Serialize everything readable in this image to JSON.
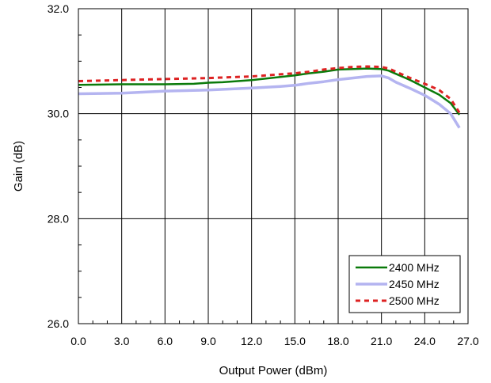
{
  "chart_data": {
    "type": "line",
    "title": "",
    "xlabel": "Output Power (dBm)",
    "ylabel": "Gain (dB)",
    "xlim": [
      0,
      27
    ],
    "ylim": [
      26,
      32
    ],
    "x_ticks": [
      "0.0",
      "3.0",
      "6.0",
      "9.0",
      "12.0",
      "15.0",
      "18.0",
      "21.0",
      "24.0",
      "27.0"
    ],
    "y_ticks": [
      "26.0",
      "28.0",
      "30.0",
      "32.0"
    ],
    "grid": true,
    "legend_position": "bottom-right",
    "series": [
      {
        "name": "2400 MHz",
        "color": "#0a7a0a",
        "style": "solid",
        "x": [
          0,
          3,
          6,
          8,
          9,
          10,
          12,
          14,
          15,
          16,
          17,
          18,
          19,
          20,
          21,
          21.5,
          22,
          23,
          24,
          25,
          25.8,
          26.4
        ],
        "y": [
          30.55,
          30.56,
          30.56,
          30.57,
          30.59,
          30.6,
          30.64,
          30.7,
          30.73,
          30.77,
          30.8,
          30.84,
          30.85,
          30.86,
          30.85,
          30.82,
          30.76,
          30.64,
          30.5,
          30.36,
          30.2,
          29.98
        ]
      },
      {
        "name": "2450 MHz",
        "color": "#b4b4f0",
        "style": "solid",
        "x": [
          0,
          3,
          6,
          9,
          12,
          14,
          15,
          16,
          17,
          18,
          19,
          20,
          21,
          21.5,
          22,
          23,
          24,
          25,
          25.8,
          26.4
        ],
        "y": [
          30.38,
          30.39,
          30.43,
          30.45,
          30.49,
          30.52,
          30.54,
          30.58,
          30.61,
          30.65,
          30.68,
          30.71,
          30.72,
          30.68,
          30.6,
          30.48,
          30.35,
          30.18,
          30.0,
          29.73
        ]
      },
      {
        "name": "2500 MHz",
        "color": "#dd2222",
        "style": "dashed",
        "x": [
          0,
          3,
          6,
          9,
          12,
          14,
          15,
          16,
          17,
          18,
          19,
          20,
          21,
          21.5,
          22,
          23,
          24,
          25,
          25.8,
          26.4
        ],
        "y": [
          30.62,
          30.64,
          30.66,
          30.68,
          30.71,
          30.75,
          30.77,
          30.8,
          30.84,
          30.87,
          30.89,
          30.9,
          30.89,
          30.86,
          30.8,
          30.68,
          30.57,
          30.45,
          30.28,
          30.02
        ]
      }
    ]
  }
}
